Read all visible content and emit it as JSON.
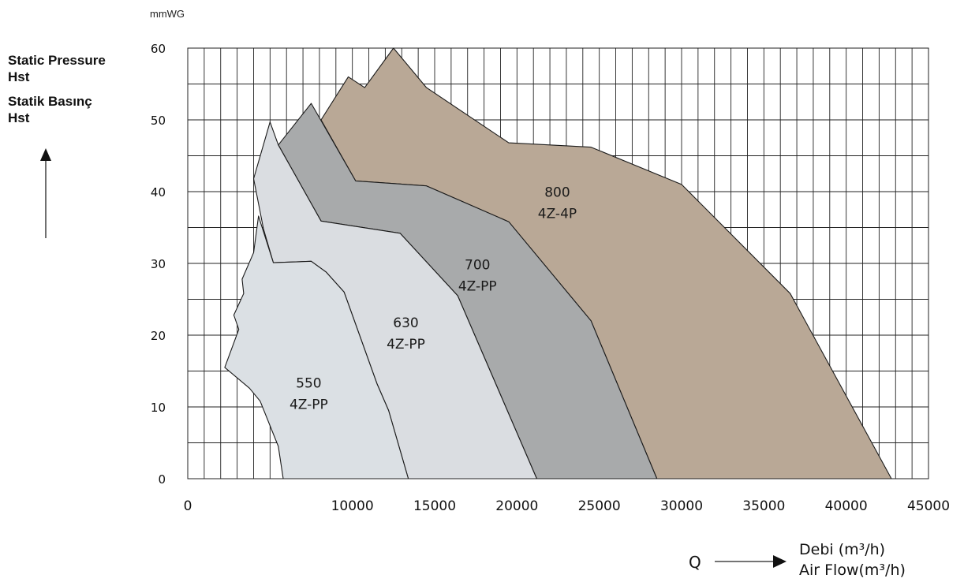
{
  "chart_data": {
    "type": "area",
    "y_unit": "mmWG",
    "ylabel_lines": [
      "Static Pressure",
      "Hst",
      "Statik Basınç",
      "Hst"
    ],
    "xlabel_symbol": "Q",
    "xlabel_lines": [
      "Debi (m³/h)",
      "Air Flow(m³/h)"
    ],
    "xlim": [
      0,
      45000
    ],
    "ylim": [
      0,
      60
    ],
    "x_ticks": [
      0,
      10000,
      15000,
      20000,
      25000,
      30000,
      35000,
      40000,
      45000
    ],
    "y_ticks": [
      0,
      10,
      20,
      30,
      40,
      50,
      60
    ],
    "grid": true,
    "series": [
      {
        "name_lines": [
          "800",
          "4Z-4P"
        ],
        "label_at": [
          22450,
          39.3
        ],
        "color": "#b9a896",
        "points": [
          [
            8100,
            50
          ],
          [
            9750,
            56
          ],
          [
            10750,
            54.5
          ],
          [
            12500,
            60
          ],
          [
            14500,
            54.5
          ],
          [
            19500,
            46.8
          ],
          [
            24500,
            46.2
          ],
          [
            30000,
            41
          ],
          [
            36600,
            25.8
          ],
          [
            42750,
            0
          ],
          [
            28500,
            0
          ],
          [
            24500,
            22
          ],
          [
            19500,
            35.8
          ],
          [
            14500,
            40.8
          ],
          [
            10200,
            41.5
          ]
        ]
      },
      {
        "name_lines": [
          "700",
          "4Z-PP"
        ],
        "label_at": [
          17600,
          29.2
        ],
        "color": "#a8aaab",
        "points": [
          [
            5500,
            46.5
          ],
          [
            7500,
            52.3
          ],
          [
            10200,
            41.5
          ],
          [
            14500,
            40.8
          ],
          [
            19500,
            35.8
          ],
          [
            24500,
            22
          ],
          [
            28500,
            0
          ],
          [
            21200,
            0
          ],
          [
            16400,
            25.5
          ],
          [
            12900,
            34.2
          ],
          [
            8100,
            35.9
          ]
        ]
      },
      {
        "name_lines": [
          "630",
          "4Z-PP"
        ],
        "label_at": [
          13250,
          21.1
        ],
        "color": "#dadde1",
        "points": [
          [
            4000,
            41.8
          ],
          [
            5000,
            49.7
          ],
          [
            5500,
            46.5
          ],
          [
            8100,
            35.9
          ],
          [
            12900,
            34.2
          ],
          [
            16400,
            25.5
          ],
          [
            21200,
            0
          ],
          [
            13400,
            0
          ],
          [
            12200,
            9.5
          ],
          [
            11500,
            13.2
          ],
          [
            9500,
            26
          ],
          [
            8400,
            28.8
          ],
          [
            7500,
            30.3
          ],
          [
            5200,
            30.1
          ],
          [
            4600,
            34.8
          ]
        ]
      },
      {
        "name_lines": [
          "550",
          "4Z-PP"
        ],
        "label_at": [
          7350,
          12.7
        ],
        "color": "#dbe0e4",
        "points": [
          [
            2250,
            15.5
          ],
          [
            3100,
            20.8
          ],
          [
            2800,
            22.8
          ],
          [
            3400,
            25.8
          ],
          [
            3300,
            27.8
          ],
          [
            4000,
            31.5
          ],
          [
            4300,
            36.6
          ],
          [
            5200,
            30.1
          ],
          [
            7500,
            30.3
          ],
          [
            8400,
            28.8
          ],
          [
            9500,
            26
          ],
          [
            11500,
            13.2
          ],
          [
            12200,
            9.5
          ],
          [
            13400,
            0
          ],
          [
            5800,
            0
          ],
          [
            5500,
            4.5
          ],
          [
            4400,
            10.8
          ],
          [
            3750,
            12.6
          ]
        ]
      }
    ]
  }
}
